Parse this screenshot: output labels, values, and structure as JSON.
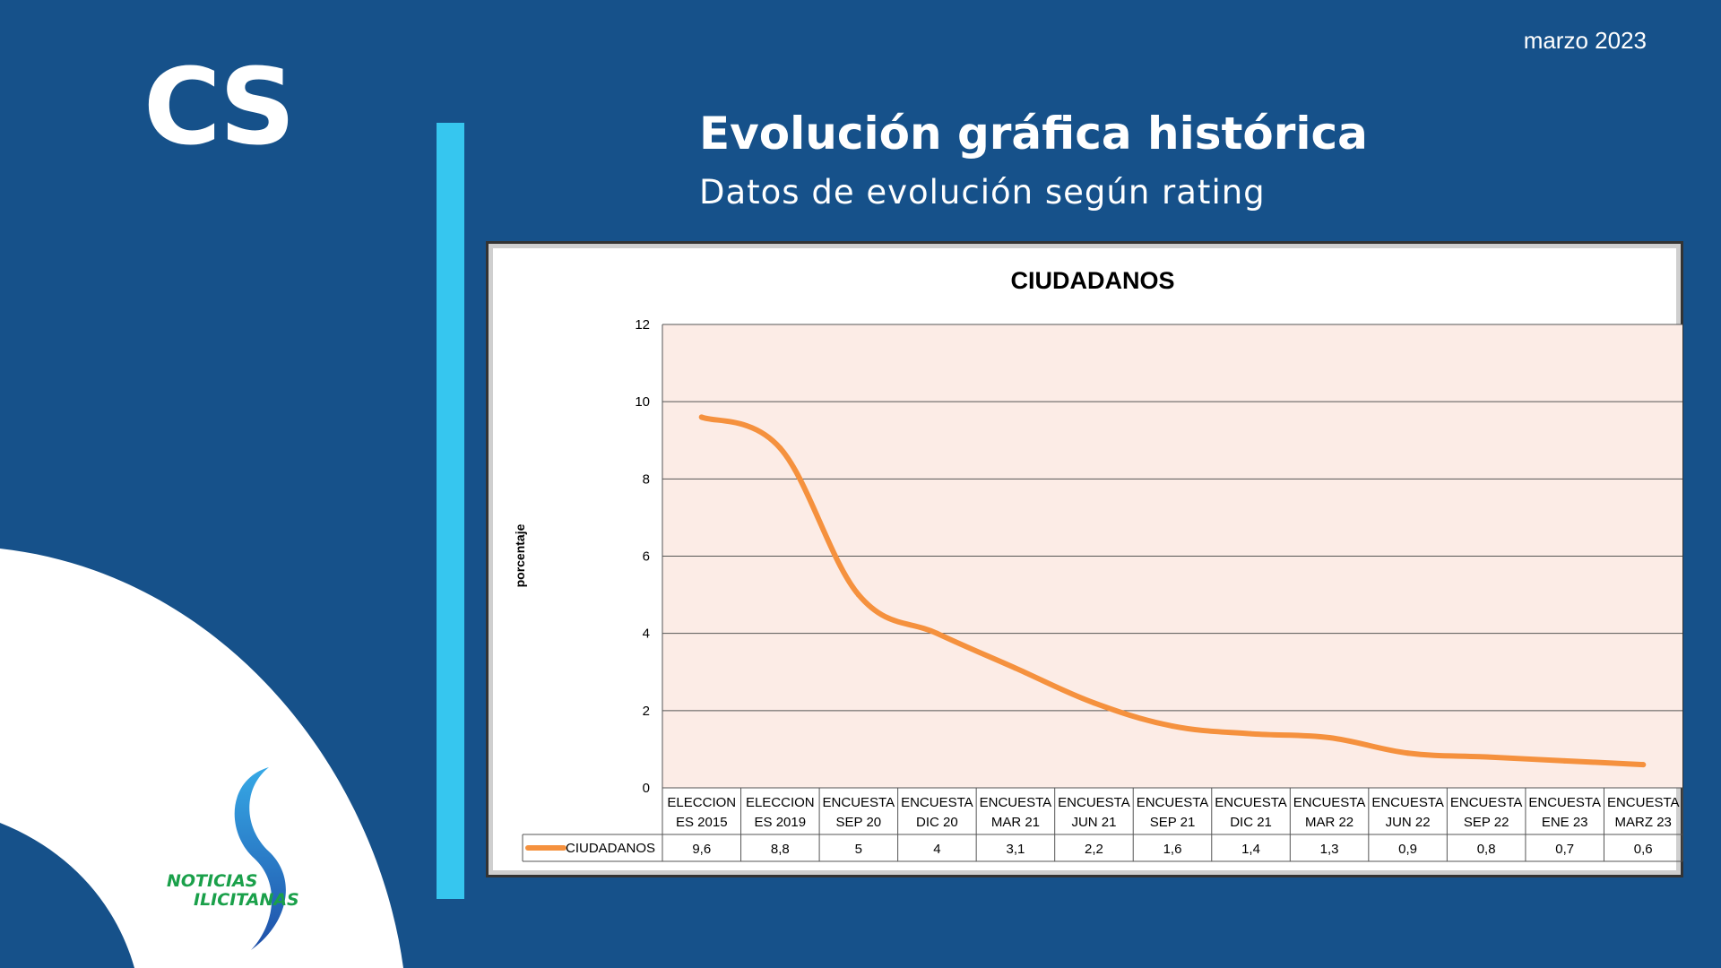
{
  "header": {
    "date": "marzo 2023",
    "logo": "CS",
    "title": "Evolución gráfica histórica",
    "subtitle": "Datos de evolución según rating"
  },
  "brand": {
    "line1": "NOTICIAS",
    "line2": "ILICITANAS",
    "text_color": "#1aa04a"
  },
  "colors": {
    "background": "#16518a",
    "accent_bar": "#36c6ef",
    "series": "#f5913e",
    "plot_bg": "#fcece6"
  },
  "chart_data": {
    "type": "line",
    "title": "CIUDADANOS",
    "xlabel": "",
    "ylabel": "porcentaje",
    "ylim": [
      0,
      12
    ],
    "yticks": [
      0,
      2,
      4,
      6,
      8,
      10,
      12
    ],
    "grid": true,
    "legend": "data-table",
    "categories": [
      [
        "ELECCION",
        "ES 2015"
      ],
      [
        "ELECCION",
        "ES 2019"
      ],
      [
        "ENCUESTA",
        "SEP 20"
      ],
      [
        "ENCUESTA",
        "DIC 20"
      ],
      [
        "ENCUESTA",
        "MAR 21"
      ],
      [
        "ENCUESTA",
        "JUN 21"
      ],
      [
        "ENCUESTA",
        "SEP 21"
      ],
      [
        "ENCUESTA",
        "DIC 21"
      ],
      [
        "ENCUESTA",
        "MAR 22"
      ],
      [
        "ENCUESTA",
        "JUN 22"
      ],
      [
        "ENCUESTA",
        "SEP 22"
      ],
      [
        "ENCUESTA",
        "ENE 23"
      ],
      [
        "ENCUESTA",
        "MARZ 23"
      ]
    ],
    "series": [
      {
        "name": "CIUDADANOS",
        "values": [
          9.6,
          8.8,
          5,
          4,
          3.1,
          2.2,
          1.6,
          1.4,
          1.3,
          0.9,
          0.8,
          0.7,
          0.6
        ],
        "labels": [
          "9,6",
          "8,8",
          "5",
          "4",
          "3,1",
          "2,2",
          "1,6",
          "1,4",
          "1,3",
          "0,9",
          "0,8",
          "0,7",
          "0,6"
        ]
      }
    ]
  }
}
